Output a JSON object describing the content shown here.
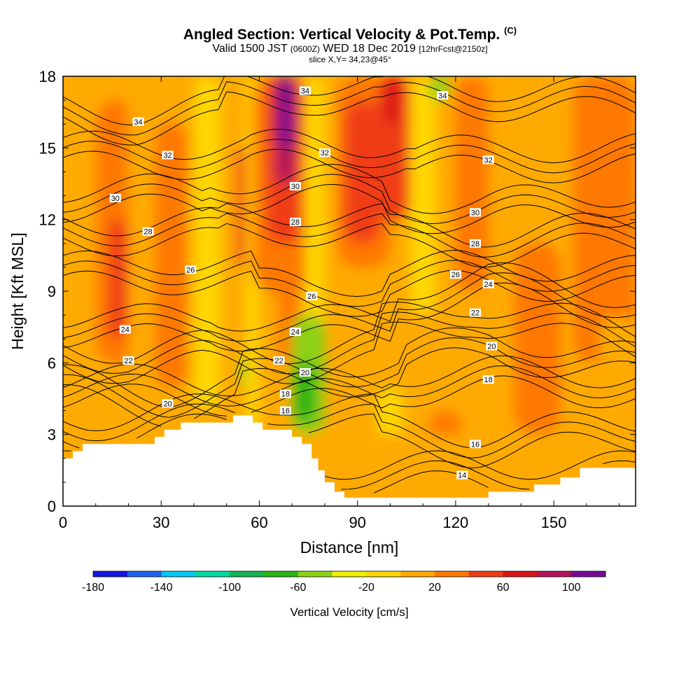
{
  "header": {
    "title": "Angled Section: Vertical Velocity & Pot.Temp.",
    "title_unit": "(C)",
    "valid_prefix": "Valid 1500 JST",
    "valid_utc": "(0600Z)",
    "valid_date": "WED 18 Dec 2019",
    "forecast": "[12hrFcst@2150z]",
    "slice": "slice X,Y= 34,23@45°"
  },
  "chart_data": {
    "type": "heatmap",
    "xlabel": "Distance [nm]",
    "ylabel": "Height [Kft MSL]",
    "xlim": [
      0,
      175
    ],
    "ylim": [
      0,
      18
    ],
    "x_ticks": [
      0,
      30,
      60,
      90,
      120,
      150
    ],
    "y_ticks": [
      0,
      3,
      6,
      9,
      12,
      15,
      18
    ],
    "grid": false,
    "colorbar": {
      "title": "Vertical Velocity [cm/s]",
      "placement": "bottom",
      "bins": [
        -180,
        -160,
        -140,
        -120,
        -100,
        -80,
        -60,
        -40,
        -20,
        0,
        20,
        40,
        60,
        80,
        100,
        120
      ],
      "tick_labels": [
        "-180",
        "-140",
        "-100",
        "-60",
        "-20",
        "20",
        "60",
        "100"
      ],
      "tick_values": [
        -180,
        -140,
        -100,
        -60,
        -20,
        20,
        60,
        100
      ],
      "colors": [
        "#1414e6",
        "#1e64f0",
        "#00c8f0",
        "#00dca0",
        "#14b450",
        "#28b414",
        "#8cd214",
        "#f0f000",
        "#ffd700",
        "#ffaa00",
        "#ff7800",
        "#f03c14",
        "#dc1414",
        "#b4145a",
        "#780a96"
      ]
    },
    "background_field": {
      "base_value_cm_s": 0,
      "cells": [
        {
          "x": [
            0,
            175
          ],
          "y": [
            0,
            18
          ],
          "value": 0
        },
        {
          "x": [
            0,
            12
          ],
          "y": [
            4,
            18
          ],
          "value": 10
        },
        {
          "x": [
            10,
            22
          ],
          "y": [
            6,
            17
          ],
          "value": 30
        },
        {
          "x": [
            14,
            20
          ],
          "y": [
            7,
            12
          ],
          "value": 50
        },
        {
          "x": [
            20,
            28
          ],
          "y": [
            3,
            18
          ],
          "value": 5
        },
        {
          "x": [
            28,
            38
          ],
          "y": [
            5,
            16
          ],
          "value": 20
        },
        {
          "x": [
            40,
            48
          ],
          "y": [
            4,
            18
          ],
          "value": -10
        },
        {
          "x": [
            48,
            56
          ],
          "y": [
            6,
            18
          ],
          "value": 15
        },
        {
          "x": [
            53,
            58
          ],
          "y": [
            10,
            15
          ],
          "value": 45
        },
        {
          "x": [
            56,
            60
          ],
          "y": [
            2.5,
            18
          ],
          "value": -15
        },
        {
          "x": [
            58,
            76
          ],
          "y": [
            9,
            18
          ],
          "value": 30
        },
        {
          "x": [
            62,
            73
          ],
          "y": [
            11,
            18
          ],
          "value": 50
        },
        {
          "x": [
            64,
            72
          ],
          "y": [
            15,
            18
          ],
          "value": 70
        },
        {
          "x": [
            65,
            71
          ],
          "y": [
            13.5,
            18
          ],
          "value": 90
        },
        {
          "x": [
            66,
            70
          ],
          "y": [
            15,
            18
          ],
          "value": 105
        },
        {
          "x": [
            66,
            72
          ],
          "y": [
            6,
            11
          ],
          "value": 20
        },
        {
          "x": [
            74,
            80
          ],
          "y": [
            5,
            18
          ],
          "value": -10
        },
        {
          "x": [
            84,
            100
          ],
          "y": [
            10,
            18
          ],
          "value": 30
        },
        {
          "x": [
            86,
            97
          ],
          "y": [
            11,
            17
          ],
          "value": 50
        },
        {
          "x": [
            96,
            106
          ],
          "y": [
            12,
            18
          ],
          "value": 45
        },
        {
          "x": [
            98,
            103
          ],
          "y": [
            16,
            18
          ],
          "value": 70
        },
        {
          "x": [
            106,
            114
          ],
          "y": [
            8,
            18
          ],
          "value": -10
        },
        {
          "x": [
            112,
            118
          ],
          "y": [
            17,
            18
          ],
          "value": -55
        },
        {
          "x": [
            120,
            130
          ],
          "y": [
            9,
            18
          ],
          "value": 20
        },
        {
          "x": [
            138,
            152
          ],
          "y": [
            3,
            11
          ],
          "value": 20
        },
        {
          "x": [
            156,
            175
          ],
          "y": [
            6,
            18
          ],
          "value": 20
        },
        {
          "x": [
            164,
            175
          ],
          "y": [
            2.5,
            8
          ],
          "value": 5
        },
        {
          "x": [
            112,
            122
          ],
          "y": [
            1,
            4
          ],
          "value": 30
        },
        {
          "x": [
            114,
            120
          ],
          "y": [
            1.5,
            3
          ],
          "value": 50
        },
        {
          "x": [
            96,
            104
          ],
          "y": [
            0,
            5
          ],
          "value": -15
        },
        {
          "x": [
            70,
            80
          ],
          "y": [
            3,
            8
          ],
          "value": -45
        },
        {
          "x": [
            71,
            77
          ],
          "y": [
            3.5,
            6
          ],
          "value": -65
        },
        {
          "x": [
            54,
            56
          ],
          "y": [
            5,
            6.2
          ],
          "value": -45
        },
        {
          "x": [
            0,
            175
          ],
          "y": [
            0,
            3
          ],
          "value": 3
        }
      ]
    },
    "terrain_kft": [
      [
        0,
        2.0
      ],
      [
        3,
        2.0
      ],
      [
        3,
        2.3
      ],
      [
        6,
        2.3
      ],
      [
        6,
        2.6
      ],
      [
        27,
        2.6
      ],
      [
        27,
        2.9
      ],
      [
        30,
        2.9
      ],
      [
        30,
        3.2
      ],
      [
        33,
        3.2
      ],
      [
        33,
        3.5
      ],
      [
        36,
        3.5
      ],
      [
        36,
        3.8
      ],
      [
        52,
        3.8
      ],
      [
        52,
        3.8
      ],
      [
        52,
        3.8
      ],
      [
        52,
        3.5
      ],
      [
        52,
        3.5
      ],
      [
        52,
        3.5
      ],
      [
        52,
        3.8
      ],
      [
        52,
        3.8
      ],
      [
        52,
        3.8
      ],
      [
        52,
        3.8
      ],
      [
        52,
        3.8
      ],
      [
        52,
        3.8
      ],
      [
        52,
        3.8
      ],
      [
        52,
        3.8
      ],
      [
        52,
        3.8
      ],
      [
        52,
        3.8
      ],
      [
        52,
        3.8
      ],
      [
        52,
        3.8
      ],
      [
        52,
        3.8
      ]
    ],
    "terrain_profile_kft": [
      [
        0,
        2.0
      ],
      [
        3,
        2.0
      ],
      [
        3,
        2.3
      ],
      [
        6,
        2.3
      ],
      [
        6,
        2.6
      ],
      [
        28,
        2.6
      ],
      [
        28,
        2.9
      ],
      [
        31,
        2.9
      ],
      [
        31,
        3.2
      ],
      [
        36,
        3.2
      ],
      [
        36,
        3.5
      ],
      [
        52,
        3.5
      ],
      [
        52,
        3.8
      ],
      [
        58,
        3.8
      ],
      [
        58,
        3.5
      ],
      [
        61,
        3.5
      ],
      [
        61,
        3.2
      ],
      [
        70,
        3.2
      ],
      [
        70,
        2.9
      ],
      [
        73,
        2.9
      ],
      [
        73,
        2.6
      ],
      [
        76,
        2.6
      ],
      [
        76,
        2.0
      ],
      [
        78,
        2.0
      ],
      [
        78,
        1.5
      ],
      [
        80,
        1.5
      ],
      [
        80,
        1.0
      ],
      [
        83,
        1.0
      ],
      [
        83,
        0.6
      ],
      [
        86,
        0.6
      ],
      [
        86,
        0.35
      ],
      [
        130,
        0.35
      ],
      [
        130,
        0.6
      ],
      [
        144,
        0.6
      ],
      [
        144,
        0.9
      ],
      [
        152,
        0.9
      ],
      [
        152,
        1.2
      ],
      [
        158,
        1.2
      ],
      [
        158,
        1.6
      ],
      [
        175,
        1.6
      ]
    ],
    "contour_labels": [
      {
        "x": 23,
        "y": 16.1,
        "text": "34"
      },
      {
        "x": 74,
        "y": 17.4,
        "text": "34"
      },
      {
        "x": 116,
        "y": 17.2,
        "text": "34"
      },
      {
        "x": 32,
        "y": 14.7,
        "text": "32"
      },
      {
        "x": 80,
        "y": 14.8,
        "text": "32"
      },
      {
        "x": 130,
        "y": 14.5,
        "text": "32"
      },
      {
        "x": 16,
        "y": 12.9,
        "text": "30"
      },
      {
        "x": 71,
        "y": 13.4,
        "text": "30"
      },
      {
        "x": 126,
        "y": 12.3,
        "text": "30"
      },
      {
        "x": 26,
        "y": 11.5,
        "text": "28"
      },
      {
        "x": 71,
        "y": 11.9,
        "text": "28"
      },
      {
        "x": 126,
        "y": 11.0,
        "text": "28"
      },
      {
        "x": 39,
        "y": 9.9,
        "text": "26"
      },
      {
        "x": 76,
        "y": 8.8,
        "text": "26"
      },
      {
        "x": 120,
        "y": 9.7,
        "text": "26"
      },
      {
        "x": 19,
        "y": 7.4,
        "text": "24"
      },
      {
        "x": 71,
        "y": 7.3,
        "text": "24"
      },
      {
        "x": 130,
        "y": 9.3,
        "text": "24"
      },
      {
        "x": 66,
        "y": 6.1,
        "text": "22"
      },
      {
        "x": 20,
        "y": 6.1,
        "text": "22"
      },
      {
        "x": 126,
        "y": 8.1,
        "text": "22"
      },
      {
        "x": 74,
        "y": 5.6,
        "text": "20"
      },
      {
        "x": 32,
        "y": 4.3,
        "text": "20"
      },
      {
        "x": 131,
        "y": 6.7,
        "text": "20"
      },
      {
        "x": 68,
        "y": 4.7,
        "text": "18"
      },
      {
        "x": 130,
        "y": 5.3,
        "text": "18"
      },
      {
        "x": 68,
        "y": 4.0,
        "text": "16"
      },
      {
        "x": 126,
        "y": 2.6,
        "text": "16"
      },
      {
        "x": 122,
        "y": 1.3,
        "text": "14"
      }
    ],
    "isentropes_c": [
      14,
      16,
      18,
      20,
      22,
      24,
      26,
      28,
      30,
      32,
      34
    ]
  }
}
